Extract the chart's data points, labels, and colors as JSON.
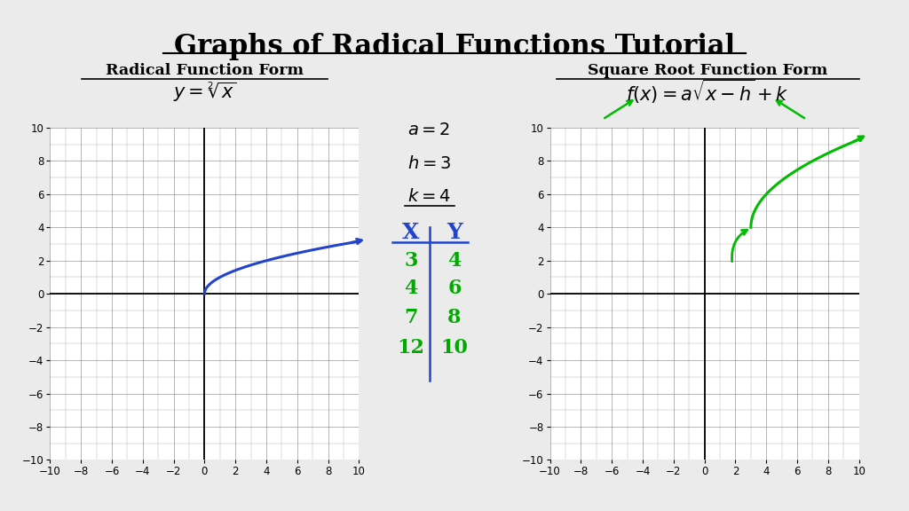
{
  "title": "Graphs of Radical Functions Tutorial",
  "bg_color": "#ebebeb",
  "left_title": "Radical Function Form",
  "right_title": "Square Root Function Form",
  "left_curve_color": "#2244cc",
  "right_curve_color": "#00bb00",
  "grid_color": "#999999",
  "title_fontsize": 22,
  "xlim": [
    -10,
    10
  ],
  "ylim": [
    -10,
    10
  ],
  "param_a": "a = 2",
  "param_h": "h = 3",
  "param_k": "k = 4",
  "table_x_vals": [
    "3",
    "4",
    "7",
    "12"
  ],
  "table_y_vals": [
    "4",
    "6",
    "8",
    "10"
  ]
}
